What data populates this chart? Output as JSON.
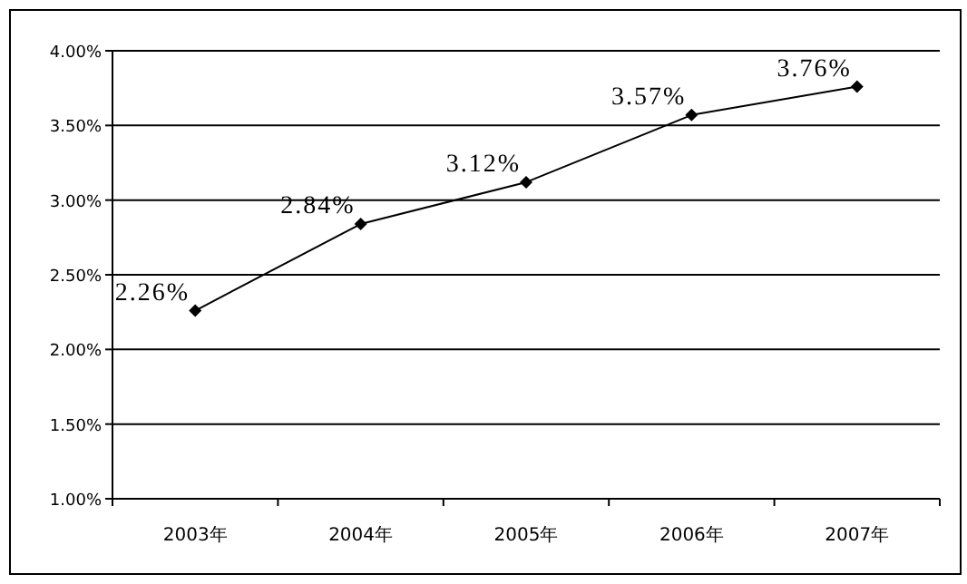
{
  "chart_data": {
    "type": "line",
    "categories": [
      "2003年",
      "2004年",
      "2005年",
      "2006年",
      "2007年"
    ],
    "series": [
      {
        "color": "#000000",
        "values": [
          2.26,
          2.84,
          3.12,
          3.57,
          3.76
        ],
        "value_labels": [
          "2.26%",
          "2.84%",
          "3.12%",
          "3.57%",
          "3.76%"
        ]
      }
    ],
    "ylim": [
      1,
      4
    ],
    "yticks": [
      {
        "value": 1,
        "label": "1.00%"
      },
      {
        "value": 1.5,
        "label": "1.50%"
      },
      {
        "value": 2,
        "label": "2.00%"
      },
      {
        "value": 2.5,
        "label": "2.50%"
      },
      {
        "value": 3,
        "label": "3.00%"
      },
      {
        "value": 3.5,
        "label": "3.50%"
      },
      {
        "value": 4,
        "label": "4.00%"
      }
    ],
    "grid": "y",
    "marker": "diamond",
    "line_style": "solid"
  }
}
